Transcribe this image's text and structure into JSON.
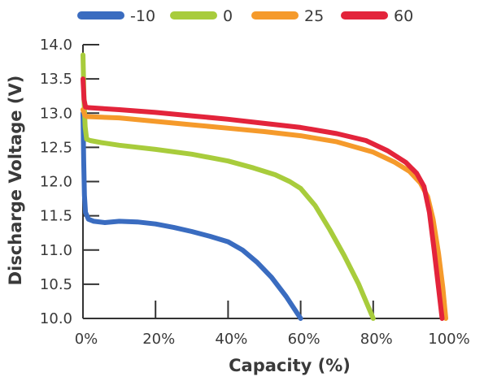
{
  "chart_data": {
    "type": "line",
    "title": "",
    "xlabel": "Capacity (%)",
    "ylabel": "Discharge Voltage (V)",
    "xlim": [
      0,
      100
    ],
    "ylim": [
      10.0,
      14.0
    ],
    "xticks": [
      0,
      20,
      40,
      60,
      80,
      100
    ],
    "xtick_labels": [
      "0%",
      "20%",
      "40%",
      "60%",
      "80%",
      "100%"
    ],
    "yticks": [
      10.0,
      10.5,
      11.0,
      11.5,
      12.0,
      12.5,
      13.0,
      13.5,
      14.0
    ],
    "ytick_labels": [
      "10.0",
      "10.5",
      "11.0",
      "11.5",
      "12.0",
      "12.5",
      "13.0",
      "13.5",
      "14.0"
    ],
    "grid": false,
    "legend_position": "top",
    "series": [
      {
        "name": "-10",
        "color": "#3a6cc0",
        "points": [
          [
            0,
            13.0
          ],
          [
            0.2,
            12.3
          ],
          [
            0.4,
            11.8
          ],
          [
            0.7,
            11.55
          ],
          [
            1.5,
            11.45
          ],
          [
            3,
            11.42
          ],
          [
            6,
            11.4
          ],
          [
            10,
            11.42
          ],
          [
            15,
            11.41
          ],
          [
            20,
            11.38
          ],
          [
            25,
            11.33
          ],
          [
            30,
            11.27
          ],
          [
            35,
            11.2
          ],
          [
            40,
            11.12
          ],
          [
            44,
            11.0
          ],
          [
            48,
            10.82
          ],
          [
            52,
            10.6
          ],
          [
            56,
            10.32
          ],
          [
            60,
            10.0
          ]
        ]
      },
      {
        "name": "0",
        "color": "#a8cc3c",
        "points": [
          [
            0,
            13.85
          ],
          [
            0.3,
            13.2
          ],
          [
            0.6,
            12.8
          ],
          [
            1,
            12.62
          ],
          [
            2,
            12.6
          ],
          [
            5,
            12.57
          ],
          [
            10,
            12.53
          ],
          [
            20,
            12.47
          ],
          [
            30,
            12.4
          ],
          [
            40,
            12.3
          ],
          [
            47,
            12.2
          ],
          [
            53,
            12.1
          ],
          [
            57,
            12.0
          ],
          [
            60,
            11.9
          ],
          [
            64,
            11.65
          ],
          [
            68,
            11.3
          ],
          [
            72,
            10.92
          ],
          [
            76,
            10.5
          ],
          [
            80,
            10.0
          ]
        ]
      },
      {
        "name": "25",
        "color": "#f59a2b",
        "points": [
          [
            0,
            13.05
          ],
          [
            0.5,
            12.97
          ],
          [
            1,
            12.95
          ],
          [
            10,
            12.93
          ],
          [
            20,
            12.88
          ],
          [
            30,
            12.83
          ],
          [
            40,
            12.78
          ],
          [
            50,
            12.73
          ],
          [
            60,
            12.67
          ],
          [
            70,
            12.58
          ],
          [
            80,
            12.43
          ],
          [
            86,
            12.28
          ],
          [
            90,
            12.15
          ],
          [
            93,
            11.98
          ],
          [
            95,
            11.78
          ],
          [
            96.5,
            11.45
          ],
          [
            98,
            10.95
          ],
          [
            99.2,
            10.45
          ],
          [
            100,
            10.0
          ]
        ]
      },
      {
        "name": "60",
        "color": "#e3243b",
        "points": [
          [
            0,
            13.5
          ],
          [
            0.3,
            13.2
          ],
          [
            0.7,
            13.09
          ],
          [
            1.5,
            13.08
          ],
          [
            10,
            13.05
          ],
          [
            20,
            13.01
          ],
          [
            30,
            12.96
          ],
          [
            40,
            12.91
          ],
          [
            50,
            12.85
          ],
          [
            60,
            12.79
          ],
          [
            70,
            12.7
          ],
          [
            78,
            12.6
          ],
          [
            84,
            12.45
          ],
          [
            89,
            12.28
          ],
          [
            92,
            12.12
          ],
          [
            94,
            11.93
          ],
          [
            95.5,
            11.55
          ],
          [
            96.8,
            11.0
          ],
          [
            98,
            10.45
          ],
          [
            99,
            10.0
          ]
        ]
      }
    ]
  }
}
